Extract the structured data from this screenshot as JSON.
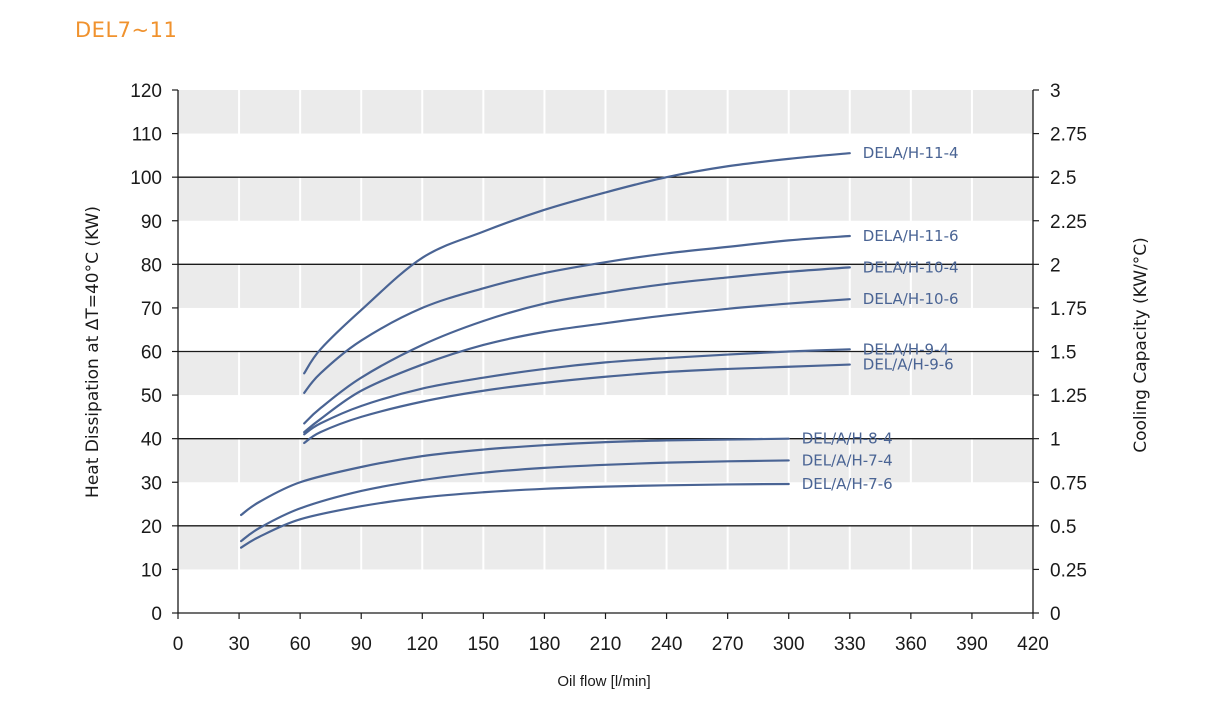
{
  "page_title": "DEL7~11",
  "colors": {
    "title": "#f0922e",
    "series": "#4a6494",
    "band": "#ebebeb",
    "major_grid": "#1a1a1a",
    "axis": "#1a1a1a"
  },
  "chart_data": {
    "type": "line",
    "xlabel": "Oil flow [l/min]",
    "ylabel": "Heat Dissipation at  ΔT=40°C (KW)",
    "y2label": "Cooling Capacity (KW/°C)",
    "xlim": [
      0,
      420
    ],
    "ylim": [
      0,
      120
    ],
    "y2lim": [
      0,
      3
    ],
    "x_ticks": [
      0,
      30,
      60,
      90,
      120,
      150,
      180,
      210,
      240,
      270,
      300,
      330,
      360,
      390,
      420
    ],
    "y_ticks": [
      0,
      10,
      20,
      30,
      40,
      50,
      60,
      70,
      80,
      90,
      100,
      110,
      120
    ],
    "y2_ticks": [
      "0",
      "0.25",
      "0.5",
      "0.75",
      "1",
      "1.25",
      "1.5",
      "1.75",
      "2",
      "2.25",
      "2.5",
      "2.75",
      "3"
    ],
    "grid": "alternating horizontal bands with vertical white gridlines; heavy lines every 20 kW",
    "series": [
      {
        "name": "DELA/H-11-4",
        "x": [
          62,
          70,
          90,
          120,
          150,
          180,
          210,
          240,
          270,
          300,
          330
        ],
        "y": [
          55.0,
          60.5,
          69.5,
          81.5,
          87.5,
          92.5,
          96.5,
          100.0,
          102.5,
          104.2,
          105.5
        ]
      },
      {
        "name": "DELA/H-11-6",
        "x": [
          62,
          70,
          90,
          120,
          150,
          180,
          210,
          240,
          270,
          300,
          330
        ],
        "y": [
          50.5,
          55.0,
          62.5,
          70.0,
          74.5,
          78.0,
          80.5,
          82.5,
          84.0,
          85.5,
          86.5
        ]
      },
      {
        "name": "DELA/H-10-4",
        "x": [
          62,
          70,
          90,
          120,
          150,
          180,
          210,
          240,
          270,
          300,
          330
        ],
        "y": [
          43.5,
          47.0,
          54.0,
          61.5,
          67.0,
          71.0,
          73.5,
          75.5,
          77.0,
          78.3,
          79.3
        ]
      },
      {
        "name": "DELA/H-10-6",
        "x": [
          62,
          70,
          90,
          120,
          150,
          180,
          210,
          240,
          270,
          300,
          330
        ],
        "y": [
          41.5,
          44.5,
          51.0,
          57.0,
          61.5,
          64.5,
          66.5,
          68.3,
          69.8,
          71.0,
          72.0
        ]
      },
      {
        "name": "DELA/H-9-4",
        "x": [
          62,
          70,
          90,
          120,
          150,
          180,
          210,
          240,
          270,
          300,
          330
        ],
        "y": [
          41.0,
          43.5,
          47.5,
          51.5,
          54.0,
          56.0,
          57.5,
          58.5,
          59.3,
          60.0,
          60.5
        ]
      },
      {
        "name": "DEL/A/H-9-6",
        "x": [
          62,
          70,
          90,
          120,
          150,
          180,
          210,
          240,
          270,
          300,
          330
        ],
        "y": [
          39.0,
          41.5,
          45.0,
          48.5,
          51.0,
          52.8,
          54.2,
          55.3,
          56.0,
          56.5,
          57.0
        ]
      },
      {
        "name": "DEL/A/H-8-4",
        "x": [
          31,
          40,
          60,
          90,
          120,
          150,
          180,
          210,
          240,
          270,
          300
        ],
        "y": [
          22.5,
          25.5,
          30.0,
          33.5,
          36.0,
          37.5,
          38.5,
          39.2,
          39.6,
          39.8,
          40.0
        ]
      },
      {
        "name": "DEL/A/H-7-4",
        "x": [
          31,
          40,
          60,
          90,
          120,
          150,
          180,
          210,
          240,
          270,
          300
        ],
        "y": [
          16.5,
          19.5,
          24.0,
          28.0,
          30.5,
          32.2,
          33.3,
          34.0,
          34.5,
          34.8,
          35.0
        ]
      },
      {
        "name": "DEL/A/H-7-6",
        "x": [
          31,
          40,
          60,
          90,
          120,
          150,
          180,
          210,
          240,
          270,
          300
        ],
        "y": [
          15.0,
          17.5,
          21.5,
          24.5,
          26.5,
          27.7,
          28.5,
          29.0,
          29.3,
          29.5,
          29.6
        ]
      }
    ]
  }
}
